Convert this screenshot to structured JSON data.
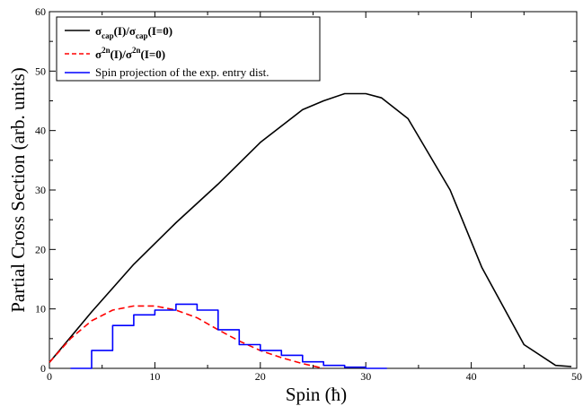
{
  "chart_data": {
    "type": "line",
    "xlabel_main": "Spin (",
    "xlabel_unit": "ħ",
    "xlabel_close": ")",
    "ylabel": "Partial Cross Section (arb. units)",
    "xlim": [
      0,
      50
    ],
    "ylim": [
      0,
      60
    ],
    "xticks": [
      "0",
      "10",
      "20",
      "30",
      "40",
      "50"
    ],
    "yticks": [
      "0",
      "10",
      "20",
      "30",
      "40",
      "50",
      "60"
    ],
    "legend_position": "top-left",
    "legend": {
      "s1_sigma": "σ",
      "s1_sub": "cap",
      "s1_mid": "(I)/σ",
      "s1_sub2": "cap",
      "s1_end": "(I=0)",
      "s2_sigma": "σ",
      "s2_sup": "2n",
      "s2_mid": "(I)/σ",
      "s2_sup2": "2n",
      "s2_end": "(I=0)",
      "s3_label": "Spin projection of the exp. entry dist."
    },
    "series": [
      {
        "style": "solid",
        "color": "#000000",
        "x": [
          0,
          4,
          8,
          12,
          16,
          20,
          24,
          26,
          28,
          30,
          31.5,
          34,
          38,
          41,
          45,
          48,
          49.5
        ],
        "y": [
          1,
          9.5,
          17.5,
          24.5,
          31,
          38,
          43.5,
          45,
          46.2,
          46.2,
          45.5,
          42,
          30,
          17,
          4,
          0.5,
          0.3
        ]
      },
      {
        "style": "dashed",
        "color": "#ff0000",
        "x": [
          0,
          2,
          4,
          6,
          8,
          10,
          12,
          14,
          16,
          18,
          20,
          22,
          24,
          26
        ],
        "y": [
          1,
          5,
          8,
          9.8,
          10.5,
          10.5,
          9.8,
          8.5,
          6.5,
          4.6,
          3.0,
          1.8,
          0.8,
          0
        ]
      },
      {
        "style": "step",
        "color": "#0000ff",
        "x": [
          2,
          4,
          4,
          6,
          6,
          8,
          8,
          10,
          10,
          12,
          12,
          14,
          14,
          16,
          16,
          18,
          18,
          20,
          20,
          22,
          22,
          24,
          24,
          26,
          26,
          28,
          28,
          30,
          30,
          32
        ],
        "y": [
          0,
          0,
          3,
          3,
          7.2,
          7.2,
          9,
          9,
          9.8,
          9.8,
          10.8,
          10.8,
          9.8,
          9.8,
          6.5,
          6.5,
          4,
          4,
          3,
          3,
          2.2,
          2.2,
          1.1,
          1.1,
          0.5,
          0.5,
          0.2,
          0.2,
          0,
          0
        ]
      }
    ]
  }
}
